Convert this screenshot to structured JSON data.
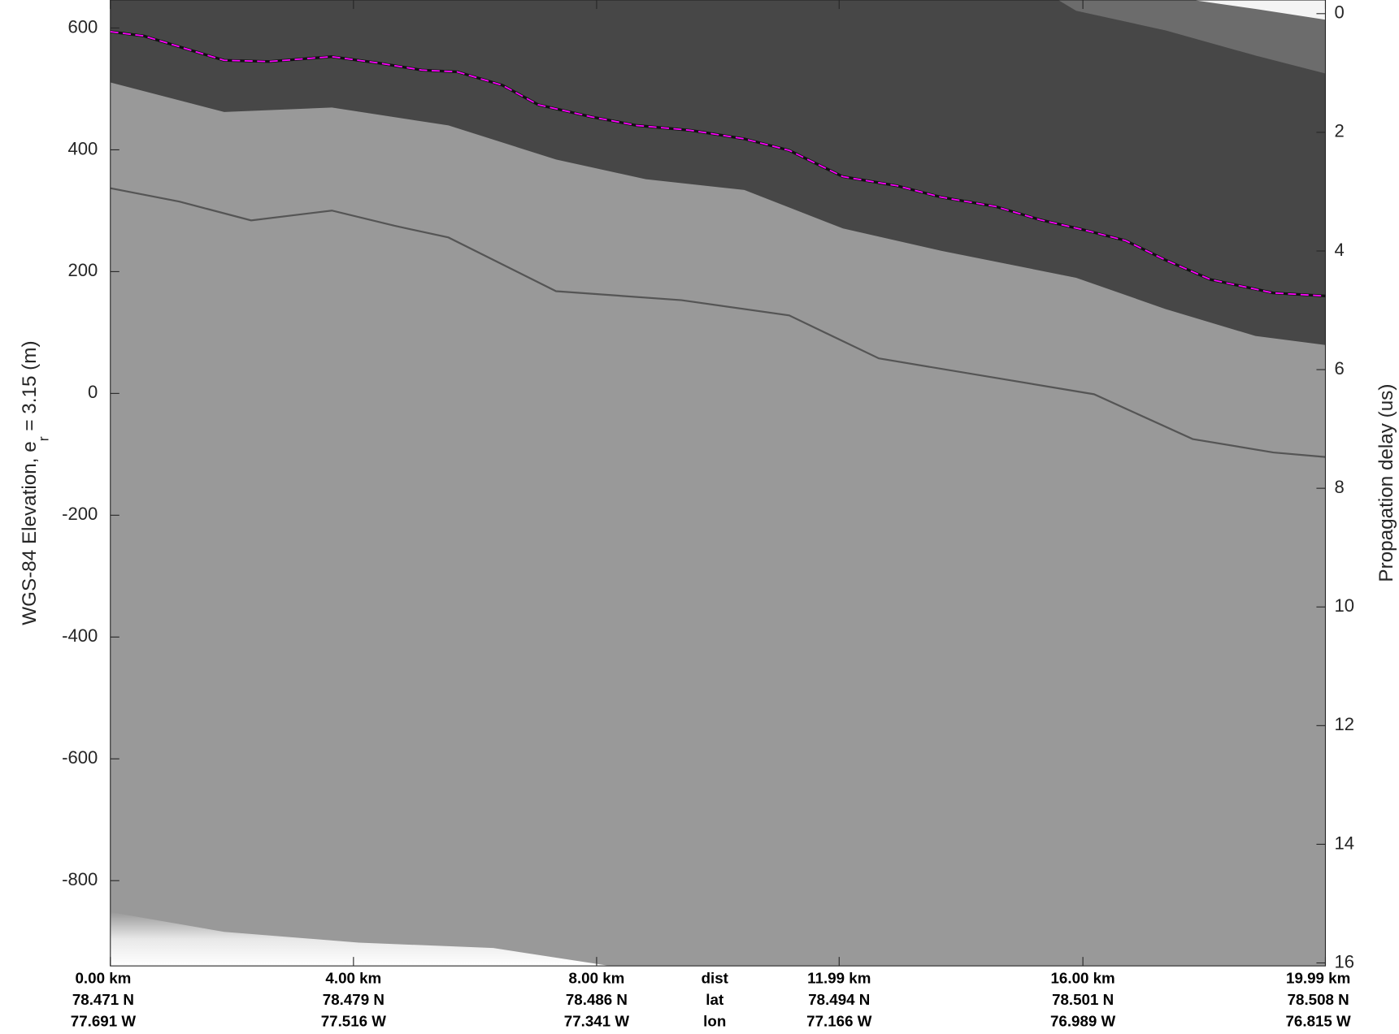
{
  "chart_data": {
    "type": "radargram",
    "ylabel": {
      "main": "WGS-84 Elevation, e",
      "sub": "r",
      "rest": " = 3.15 (m)"
    },
    "y2label": "Propagation delay (us)",
    "xlim": [
      0,
      19.99
    ],
    "ylim": [
      -940,
      646
    ],
    "y2lim": [
      -0.23,
      16.05
    ],
    "yticks": [
      600,
      400,
      200,
      0,
      -200,
      -400,
      -600,
      -800
    ],
    "y2ticks": [
      0,
      2,
      4,
      6,
      8,
      10,
      12,
      14,
      16
    ],
    "xticks": [
      {
        "value": 0,
        "label": "0.00 km"
      },
      {
        "value": 4,
        "label": "4.00 km"
      },
      {
        "value": 8,
        "label": "8.00 km"
      },
      {
        "value": 11.99,
        "label": "11.99 km"
      },
      {
        "value": 16,
        "label": "16.00 km"
      },
      {
        "value": 19.99,
        "label": "19.99 km"
      }
    ],
    "lat_labels": [
      "78.471 N",
      "78.479 N",
      "78.486 N",
      "78.494 N",
      "78.501 N",
      "78.508 N"
    ],
    "lon_labels": [
      "77.691 W",
      "77.516 W",
      "77.341 W",
      "77.166 W",
      "76.989 W",
      "76.815 W"
    ],
    "row_headers": [
      "dist",
      "lat",
      "lon"
    ],
    "series": [
      {
        "color": "#ff00ff",
        "x": [
          0,
          0.55,
          1.87,
          2.61,
          3.64,
          4.38,
          5.12,
          5.71,
          6.45,
          7.04,
          7.92,
          8.66,
          9.55,
          10.43,
          11.17,
          12.05,
          12.94,
          13.68,
          14.56,
          15.3,
          16.04,
          16.7,
          17.36,
          18.1,
          19.13,
          19.99
        ],
        "values": [
          594,
          587,
          547,
          545,
          553,
          543,
          531,
          528,
          506,
          474,
          454,
          440,
          432,
          418,
          399,
          356,
          341,
          322,
          307,
          285,
          268,
          251,
          219,
          187,
          165,
          160
        ]
      }
    ]
  }
}
